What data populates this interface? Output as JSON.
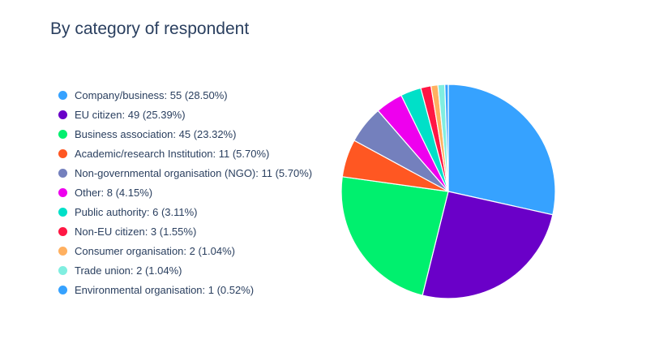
{
  "chart_data": {
    "type": "pie",
    "title": "By category of respondent",
    "legend_position": "left",
    "slices": [
      {
        "label": "Company/business",
        "value": 55,
        "percent": "28.50%",
        "color": "#36a2ff"
      },
      {
        "label": "EU citizen",
        "value": 49,
        "percent": "25.39%",
        "color": "#6a00c8"
      },
      {
        "label": "Business association",
        "value": 45,
        "percent": "23.32%",
        "color": "#00f06e"
      },
      {
        "label": "Academic/research Institution",
        "value": 11,
        "percent": "5.70%",
        "color": "#ff5722"
      },
      {
        "label": "Non-governmental organisation (NGO)",
        "value": 11,
        "percent": "5.70%",
        "color": "#7480bd"
      },
      {
        "label": "Other",
        "value": 8,
        "percent": "4.15%",
        "color": "#ee00ee"
      },
      {
        "label": "Public authority",
        "value": 6,
        "percent": "3.11%",
        "color": "#00e0c8"
      },
      {
        "label": "Non-EU citizen",
        "value": 3,
        "percent": "1.55%",
        "color": "#ff1744"
      },
      {
        "label": "Consumer organisation",
        "value": 2,
        "percent": "1.04%",
        "color": "#ffb060"
      },
      {
        "label": "Trade union",
        "value": 2,
        "percent": "1.04%",
        "color": "#80eee0"
      },
      {
        "label": "Environmental organisation",
        "value": 1,
        "percent": "0.52%",
        "color": "#36a2ff"
      }
    ]
  }
}
